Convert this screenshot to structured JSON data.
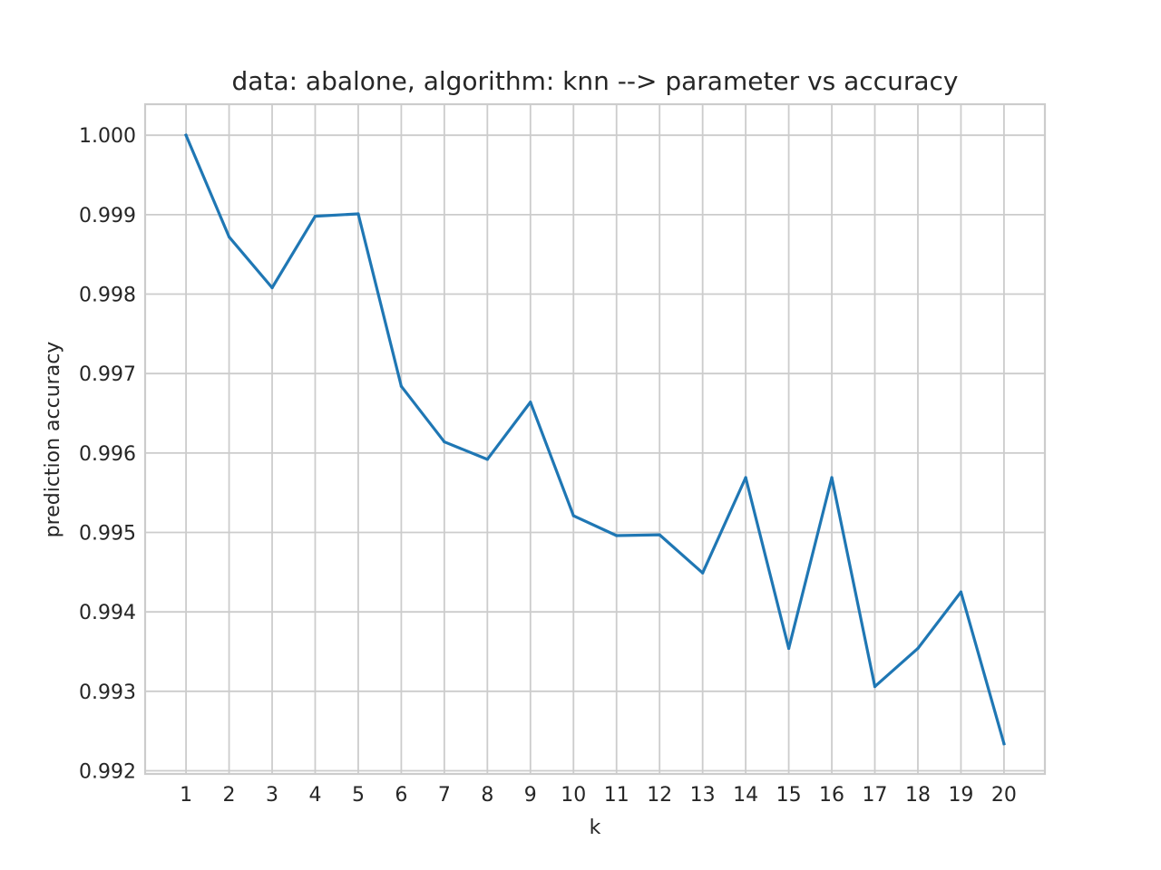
{
  "chart_data": {
    "type": "line",
    "title": "data: abalone, algorithm: knn --> parameter vs accuracy",
    "xlabel": "k",
    "ylabel": "prediction accuracy",
    "x": [
      1,
      2,
      3,
      4,
      5,
      6,
      7,
      8,
      9,
      10,
      11,
      12,
      13,
      14,
      15,
      16,
      17,
      18,
      19,
      20
    ],
    "x_tick_labels": [
      "1",
      "2",
      "3",
      "4",
      "5",
      "6",
      "7",
      "8",
      "9",
      "10",
      "11",
      "12",
      "13",
      "14",
      "15",
      "16",
      "17",
      "18",
      "19",
      "20"
    ],
    "y_ticks": [
      0.992,
      0.993,
      0.994,
      0.995,
      0.996,
      0.997,
      0.998,
      0.999,
      1.0
    ],
    "y_tick_labels": [
      "0.992",
      "0.993",
      "0.994",
      "0.995",
      "0.996",
      "0.997",
      "0.998",
      "0.999",
      "1.000"
    ],
    "xlim": [
      0.05,
      20.95
    ],
    "ylim": [
      0.99196,
      1.00039
    ],
    "grid": true,
    "color": "#1f77b4",
    "series": [
      {
        "values": [
          1.0,
          0.99872,
          0.99808,
          0.99898,
          0.99901,
          0.99684,
          0.99614,
          0.99592,
          0.99664,
          0.99521,
          0.99496,
          0.99497,
          0.99449,
          0.99569,
          0.99354,
          0.99569,
          0.99306,
          0.99354,
          0.99425,
          0.99234
        ]
      }
    ]
  }
}
